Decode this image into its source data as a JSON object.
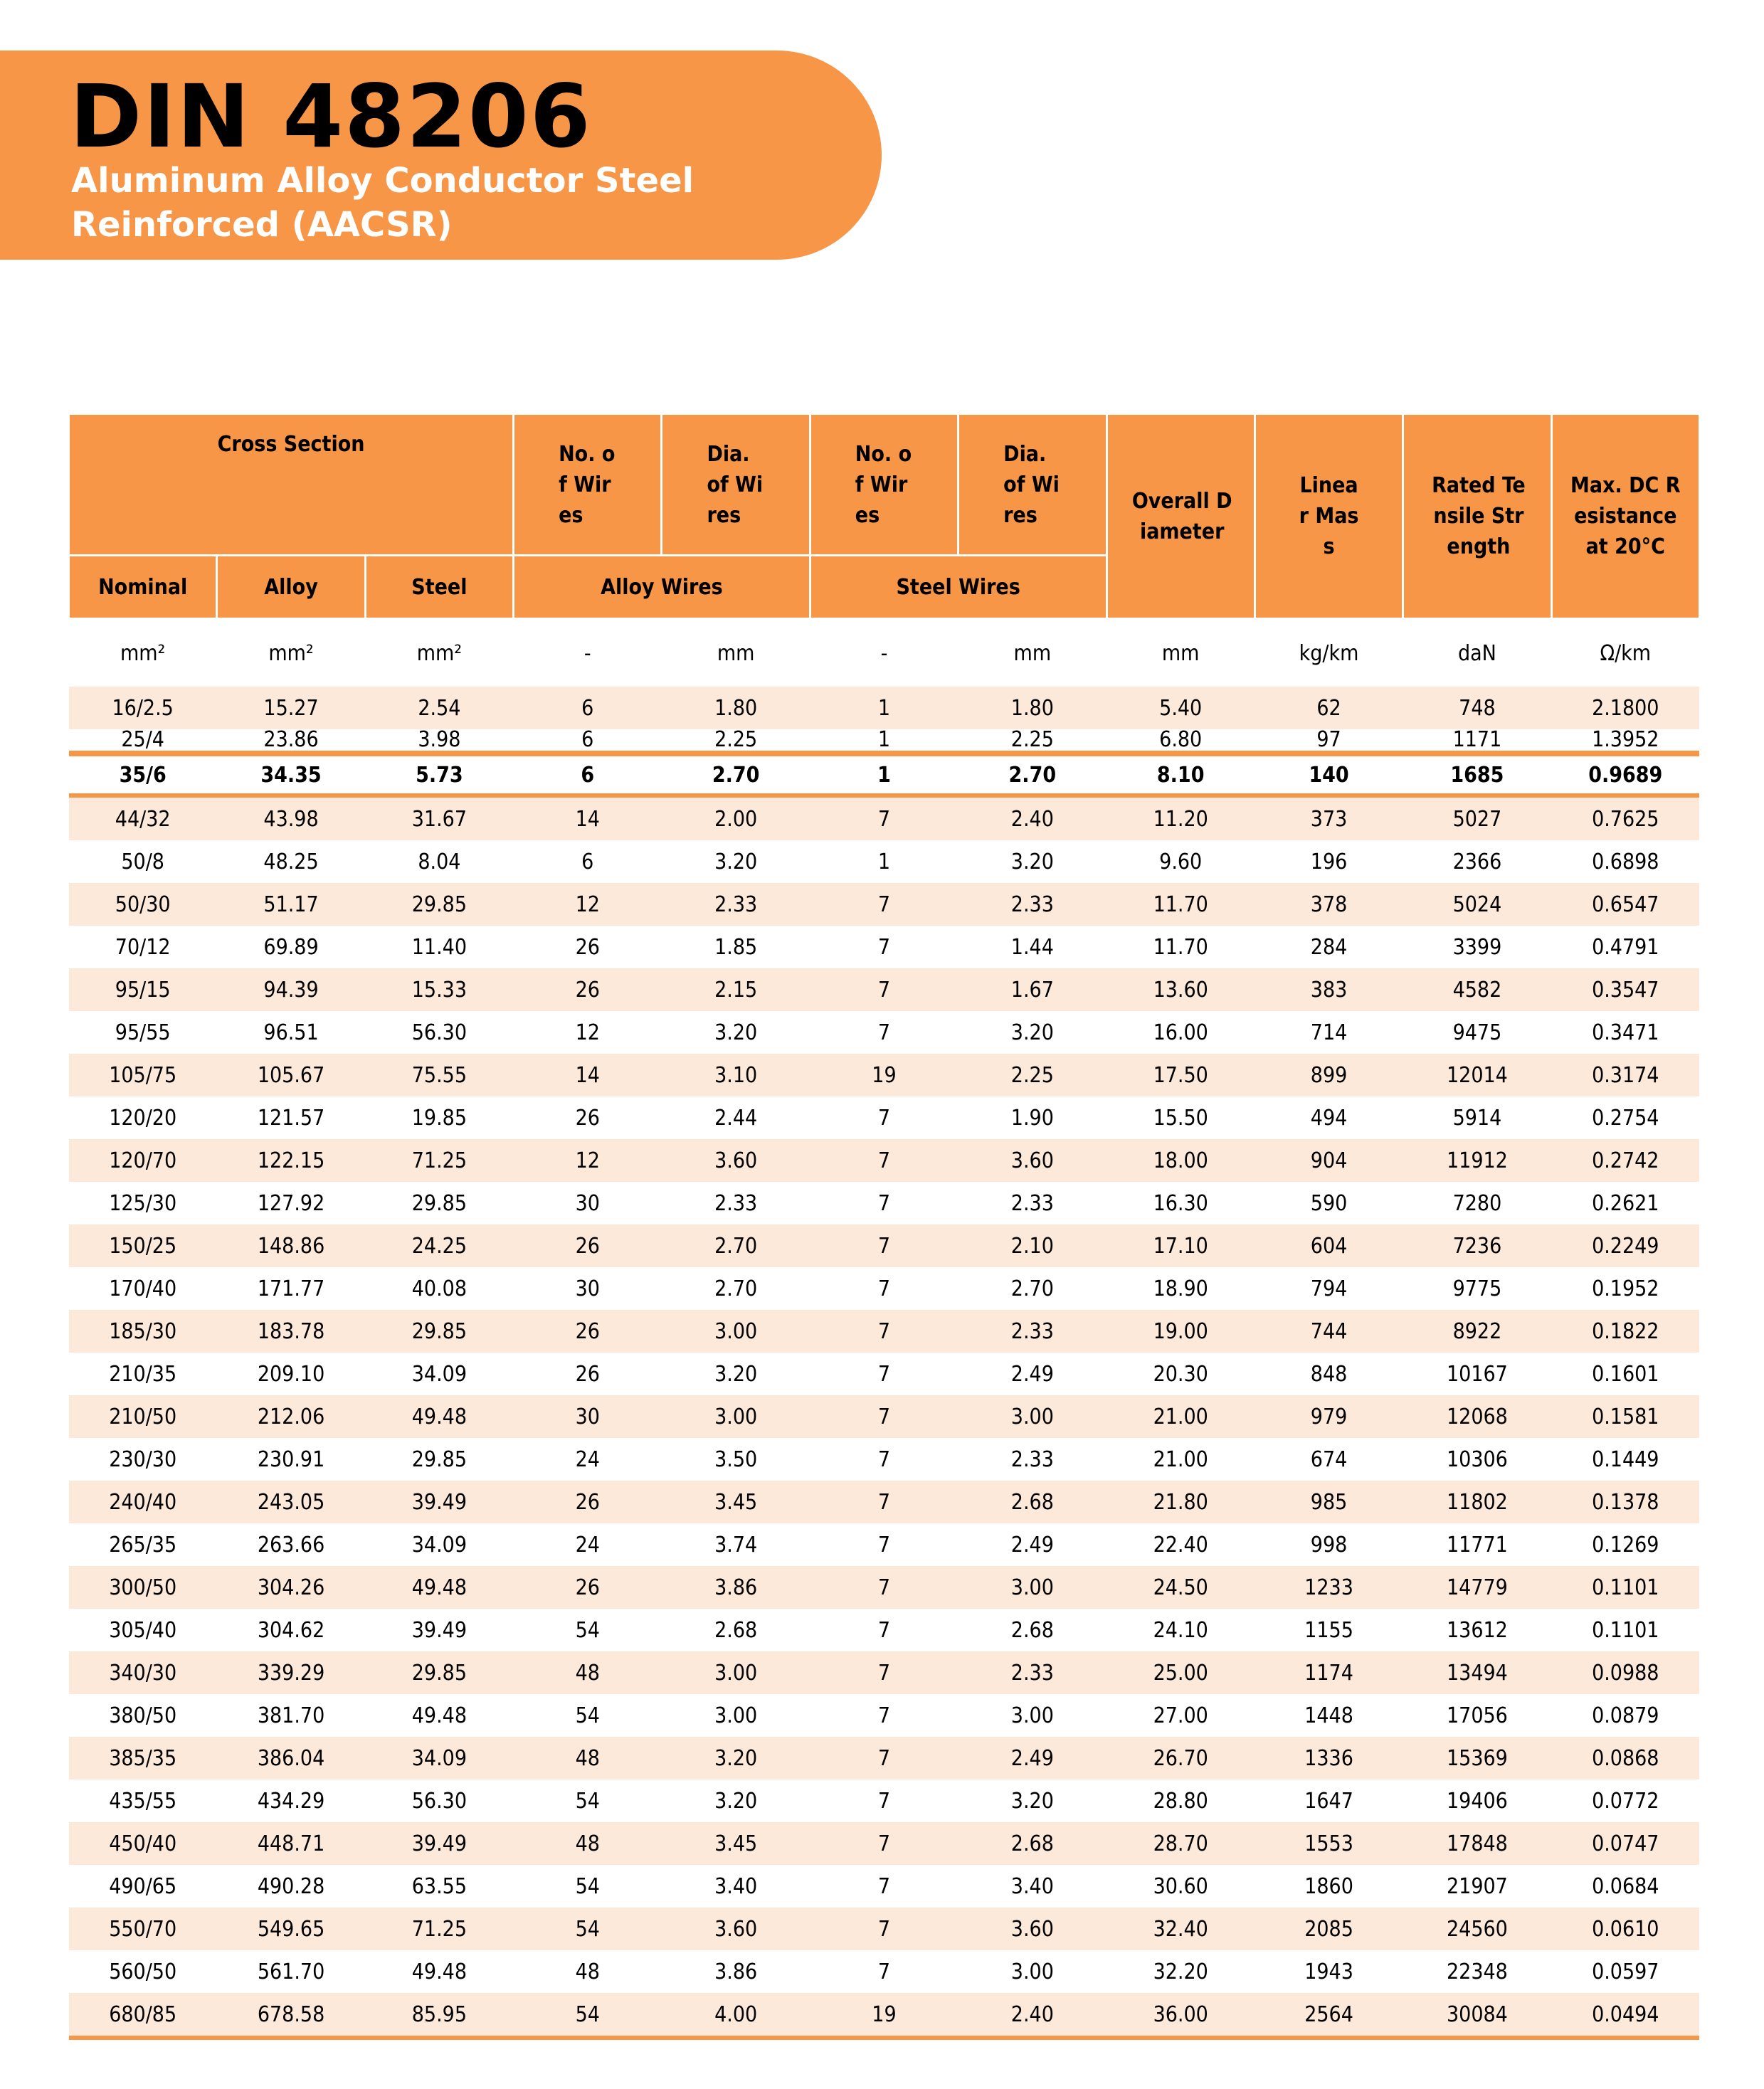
{
  "header": {
    "title": "DIN 48206",
    "subtitle": "Aluminum Alloy Conductor  Steel\nReinforced (AACSR)"
  },
  "table": {
    "group_headers": {
      "cross_section": "Cross Section",
      "no_alloy_wires": "No. of Wires",
      "dia_alloy_wires": "Dia. of Wires",
      "no_steel_wires": "No. of Wires",
      "dia_steel_wires": "Dia. of Wires",
      "overall_diameter": "Overall Diameter",
      "linear_mass": "Linear Mass",
      "rated_tensile_strength": "Rated Tensile Strength",
      "max_dc_resistance": "Max. DC Resistance at 20°C"
    },
    "sub_headers": {
      "nominal": "Nominal",
      "alloy": "Alloy",
      "steel": "Steel",
      "alloy_wires": "Alloy Wires",
      "steel_wires": "Steel Wires"
    },
    "units": [
      "mm²",
      "mm²",
      "mm²",
      "-",
      "mm",
      "-",
      "mm",
      "mm",
      "kg/km",
      "daN",
      "Ω/km"
    ],
    "rows": [
      [
        "16/2.5",
        "15.27",
        "2.54",
        "6",
        "1.80",
        "1",
        "1.80",
        "5.40",
        "62",
        "748",
        "2.1800"
      ],
      [
        "25/4",
        "23.86",
        "3.98",
        "6",
        "2.25",
        "1",
        "2.25",
        "6.80",
        "97",
        "1171",
        "1.3952"
      ],
      [
        "35/6",
        "34.35",
        "5.73",
        "6",
        "2.70",
        "1",
        "2.70",
        "8.10",
        "140",
        "1685",
        "0.9689"
      ],
      [
        "44/32",
        "43.98",
        "31.67",
        "14",
        "2.00",
        "7",
        "2.40",
        "11.20",
        "373",
        "5027",
        "0.7625"
      ],
      [
        "50/8",
        "48.25",
        "8.04",
        "6",
        "3.20",
        "1",
        "3.20",
        "9.60",
        "196",
        "2366",
        "0.6898"
      ],
      [
        "50/30",
        "51.17",
        "29.85",
        "12",
        "2.33",
        "7",
        "2.33",
        "11.70",
        "378",
        "5024",
        "0.6547"
      ],
      [
        "70/12",
        "69.89",
        "11.40",
        "26",
        "1.85",
        "7",
        "1.44",
        "11.70",
        "284",
        "3399",
        "0.4791"
      ],
      [
        "95/15",
        "94.39",
        "15.33",
        "26",
        "2.15",
        "7",
        "1.67",
        "13.60",
        "383",
        "4582",
        "0.3547"
      ],
      [
        "95/55",
        "96.51",
        "56.30",
        "12",
        "3.20",
        "7",
        "3.20",
        "16.00",
        "714",
        "9475",
        "0.3471"
      ],
      [
        "105/75",
        "105.67",
        "75.55",
        "14",
        "3.10",
        "19",
        "2.25",
        "17.50",
        "899",
        "12014",
        "0.3174"
      ],
      [
        "120/20",
        "121.57",
        "19.85",
        "26",
        "2.44",
        "7",
        "1.90",
        "15.50",
        "494",
        "5914",
        "0.2754"
      ],
      [
        "120/70",
        "122.15",
        "71.25",
        "12",
        "3.60",
        "7",
        "3.60",
        "18.00",
        "904",
        "11912",
        "0.2742"
      ],
      [
        "125/30",
        "127.92",
        "29.85",
        "30",
        "2.33",
        "7",
        "2.33",
        "16.30",
        "590",
        "7280",
        "0.2621"
      ],
      [
        "150/25",
        "148.86",
        "24.25",
        "26",
        "2.70",
        "7",
        "2.10",
        "17.10",
        "604",
        "7236",
        "0.2249"
      ],
      [
        "170/40",
        "171.77",
        "40.08",
        "30",
        "2.70",
        "7",
        "2.70",
        "18.90",
        "794",
        "9775",
        "0.1952"
      ],
      [
        "185/30",
        "183.78",
        "29.85",
        "26",
        "3.00",
        "7",
        "2.33",
        "19.00",
        "744",
        "8922",
        "0.1822"
      ],
      [
        "210/35",
        "209.10",
        "34.09",
        "26",
        "3.20",
        "7",
        "2.49",
        "20.30",
        "848",
        "10167",
        "0.1601"
      ],
      [
        "210/50",
        "212.06",
        "49.48",
        "30",
        "3.00",
        "7",
        "3.00",
        "21.00",
        "979",
        "12068",
        "0.1581"
      ],
      [
        "230/30",
        "230.91",
        "29.85",
        "24",
        "3.50",
        "7",
        "2.33",
        "21.00",
        "674",
        "10306",
        "0.1449"
      ],
      [
        "240/40",
        "243.05",
        "39.49",
        "26",
        "3.45",
        "7",
        "2.68",
        "21.80",
        "985",
        "11802",
        "0.1378"
      ],
      [
        "265/35",
        "263.66",
        "34.09",
        "24",
        "3.74",
        "7",
        "2.49",
        "22.40",
        "998",
        "11771",
        "0.1269"
      ],
      [
        "300/50",
        "304.26",
        "49.48",
        "26",
        "3.86",
        "7",
        "3.00",
        "24.50",
        "1233",
        "14779",
        "0.1101"
      ],
      [
        "305/40",
        "304.62",
        "39.49",
        "54",
        "2.68",
        "7",
        "2.68",
        "24.10",
        "1155",
        "13612",
        "0.1101"
      ],
      [
        "340/30",
        "339.29",
        "29.85",
        "48",
        "3.00",
        "7",
        "2.33",
        "25.00",
        "1174",
        "13494",
        "0.0988"
      ],
      [
        "380/50",
        "381.70",
        "49.48",
        "54",
        "3.00",
        "7",
        "3.00",
        "27.00",
        "1448",
        "17056",
        "0.0879"
      ],
      [
        "385/35",
        "386.04",
        "34.09",
        "48",
        "3.20",
        "7",
        "2.49",
        "26.70",
        "1336",
        "15369",
        "0.0868"
      ],
      [
        "435/55",
        "434.29",
        "56.30",
        "54",
        "3.20",
        "7",
        "3.20",
        "28.80",
        "1647",
        "19406",
        "0.0772"
      ],
      [
        "450/40",
        "448.71",
        "39.49",
        "48",
        "3.45",
        "7",
        "2.68",
        "28.70",
        "1553",
        "17848",
        "0.0747"
      ],
      [
        "490/65",
        "490.28",
        "63.55",
        "54",
        "3.40",
        "7",
        "3.40",
        "30.60",
        "1860",
        "21907",
        "0.0684"
      ],
      [
        "550/70",
        "549.65",
        "71.25",
        "54",
        "3.60",
        "7",
        "3.60",
        "32.40",
        "2085",
        "24560",
        "0.0610"
      ],
      [
        "560/50",
        "561.70",
        "49.48",
        "48",
        "3.86",
        "7",
        "3.00",
        "32.20",
        "1943",
        "22348",
        "0.0597"
      ],
      [
        "680/85",
        "678.58",
        "85.95",
        "54",
        "4.00",
        "19",
        "2.40",
        "36.00",
        "2564",
        "30084",
        "0.0494"
      ]
    ]
  },
  "colors": {
    "accent": "#F79646",
    "stripe": "#FDE9D9"
  }
}
